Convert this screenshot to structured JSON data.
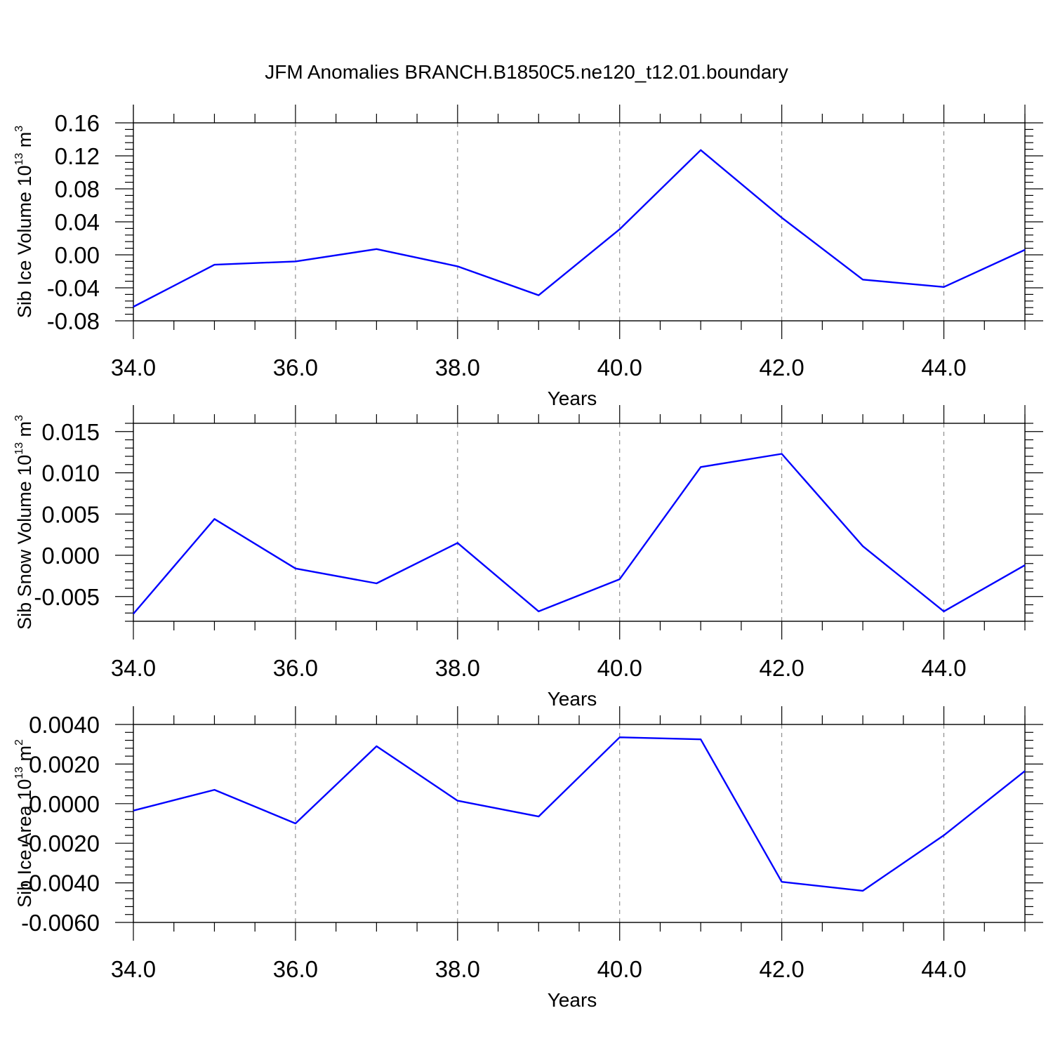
{
  "figure": {
    "title": "JFM Anomalies BRANCH.B1850C5.ne120_t12.01.boundary"
  },
  "chart_data": [
    {
      "type": "line",
      "xlabel": "Years",
      "ylabel": "Sib Ice Volume 10",
      "ylabel_sup": "13",
      "ylabel_unit": " m",
      "ylabel_unit_sup": "3",
      "xlim": [
        34,
        45
      ],
      "ylim": [
        -0.08,
        0.16
      ],
      "x_ticks": [
        34,
        36,
        38,
        40,
        42,
        44
      ],
      "x_tick_labels": [
        "34.0",
        "36.0",
        "38.0",
        "40.0",
        "42.0",
        "44.0"
      ],
      "y_ticks": [
        -0.08,
        -0.04,
        0.0,
        0.04,
        0.08,
        0.12,
        0.16
      ],
      "y_tick_labels": [
        "-0.08",
        "-0.04",
        "0.00",
        "0.04",
        "0.08",
        "0.12",
        "0.16"
      ],
      "grid": "vertical dashed at major x ticks",
      "color": "#0000ff",
      "x": [
        34,
        35,
        36,
        37,
        38,
        39,
        40,
        41,
        42,
        43,
        44,
        45
      ],
      "values": [
        -0.063,
        -0.012,
        -0.008,
        0.007,
        -0.014,
        -0.049,
        0.031,
        0.127,
        0.045,
        -0.03,
        -0.039,
        0.006
      ]
    },
    {
      "type": "line",
      "xlabel": "Years",
      "ylabel": "Sib Snow Volume 10",
      "ylabel_sup": "13",
      "ylabel_unit": " m",
      "ylabel_unit_sup": "3",
      "xlim": [
        34,
        45
      ],
      "ylim": [
        -0.008,
        0.016
      ],
      "x_ticks": [
        34,
        36,
        38,
        40,
        42,
        44
      ],
      "x_tick_labels": [
        "34.0",
        "36.0",
        "38.0",
        "40.0",
        "42.0",
        "44.0"
      ],
      "y_ticks": [
        -0.005,
        0.0,
        0.005,
        0.01,
        0.015
      ],
      "y_tick_labels": [
        "-0.005",
        "0.000",
        "0.005",
        "0.010",
        "0.015"
      ],
      "grid": "vertical dashed at major x ticks",
      "color": "#0000ff",
      "x": [
        34,
        35,
        36,
        37,
        38,
        39,
        40,
        41,
        42,
        43,
        44,
        45
      ],
      "values": [
        -0.0071,
        0.0044,
        -0.0016,
        -0.0034,
        0.0015,
        -0.0068,
        -0.0029,
        0.0107,
        0.0123,
        0.0011,
        -0.0068,
        -0.0012
      ]
    },
    {
      "type": "line",
      "xlabel": "Years",
      "ylabel": "Sib Ice Area 10",
      "ylabel_sup": "13",
      "ylabel_unit": " m",
      "ylabel_unit_sup": "2",
      "xlim": [
        34,
        45
      ],
      "ylim": [
        -0.006,
        0.004
      ],
      "x_ticks": [
        34,
        36,
        38,
        40,
        42,
        44
      ],
      "x_tick_labels": [
        "34.0",
        "36.0",
        "38.0",
        "40.0",
        "42.0",
        "44.0"
      ],
      "y_ticks": [
        -0.006,
        -0.004,
        -0.002,
        0.0,
        0.002,
        0.004
      ],
      "y_tick_labels": [
        "-0.0060",
        "-0.0040",
        "-0.0020",
        "0.0000",
        "0.0020",
        "0.0040"
      ],
      "grid": "vertical dashed at major x ticks",
      "color": "#0000ff",
      "x": [
        34,
        35,
        36,
        37,
        38,
        39,
        40,
        41,
        42,
        43,
        44,
        45
      ],
      "values": [
        -0.00035,
        0.0007,
        -0.001,
        0.0029,
        0.00015,
        -0.00065,
        0.00335,
        0.00325,
        -0.00395,
        -0.0044,
        -0.0016,
        0.00165
      ]
    }
  ]
}
